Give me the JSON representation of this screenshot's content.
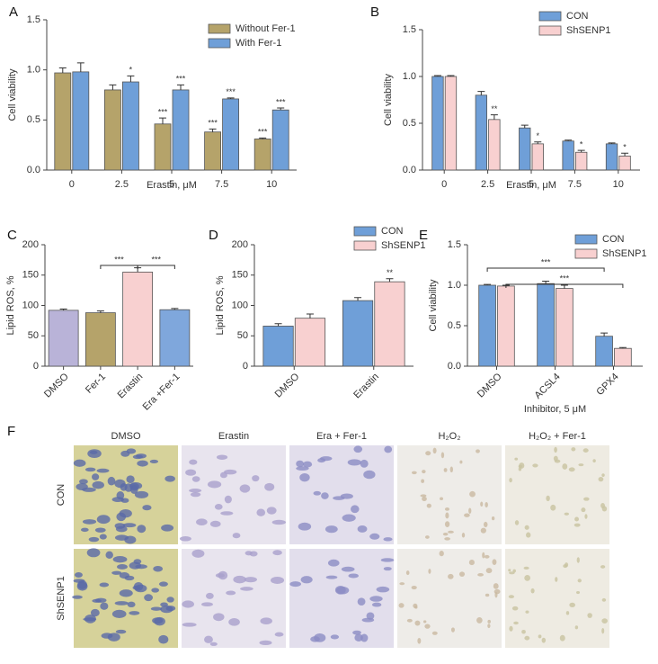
{
  "chart_data": [
    {
      "type": "bar",
      "panel": "A",
      "xlabel": "Erastin, μM",
      "ylabel": "Cell viability",
      "categories": [
        "0",
        "2.5",
        "5",
        "7.5",
        "10"
      ],
      "series": [
        {
          "name": "Without Fer-1",
          "color": "#b5a36a",
          "values": [
            0.97,
            0.8,
            0.46,
            0.38,
            0.31
          ],
          "errors": [
            0.05,
            0.05,
            0.06,
            0.03,
            0.01
          ],
          "significance": [
            null,
            null,
            "***",
            "***",
            "***"
          ]
        },
        {
          "name": "With Fer-1",
          "color": "#6f9fd8",
          "values": [
            0.98,
            0.88,
            0.8,
            0.71,
            0.6
          ],
          "errors": [
            0.09,
            0.06,
            0.05,
            0.01,
            0.02
          ],
          "significance": [
            null,
            "*",
            "***",
            "***",
            "***"
          ]
        }
      ],
      "ylim": [
        0,
        1.5
      ],
      "yticks": [
        {
          "value": 0,
          "label": "0.0"
        },
        {
          "value": 0.5,
          "label": "0.5"
        },
        {
          "value": 1,
          "label": "1.0"
        },
        {
          "value": 1.5,
          "label": "1.5"
        }
      ],
      "legend": "upper right"
    },
    {
      "type": "bar",
      "panel": "B",
      "xlabel": "Erastin, μM",
      "ylabel": "Cell viability",
      "categories": [
        "0",
        "2.5",
        "5",
        "7.5",
        "10"
      ],
      "series": [
        {
          "name": "CON",
          "color": "#6f9fd8",
          "values": [
            1.0,
            0.8,
            0.45,
            0.31,
            0.28
          ],
          "errors": [
            0.01,
            0.04,
            0.03,
            0.01,
            0.01
          ],
          "significance": [
            null,
            null,
            null,
            null,
            null
          ]
        },
        {
          "name": "ShSENP1",
          "color": "#f8d0d0",
          "values": [
            1.0,
            0.54,
            0.28,
            0.19,
            0.15
          ],
          "errors": [
            0.01,
            0.05,
            0.02,
            0.02,
            0.03
          ],
          "significance": [
            null,
            "**",
            "*",
            "*",
            "*"
          ]
        }
      ],
      "ylim": [
        0,
        1.5
      ],
      "yticks": [
        {
          "value": 0,
          "label": "0.0"
        },
        {
          "value": 0.5,
          "label": "0.5"
        },
        {
          "value": 1,
          "label": "1.0"
        },
        {
          "value": 1.5,
          "label": "1.5"
        }
      ],
      "legend": "upper right"
    },
    {
      "type": "bar",
      "panel": "C",
      "ylabel": "Lipid ROS, %",
      "categories": [
        "DMSO",
        "Fer-1",
        "Erastin",
        "Era +Fer-1"
      ],
      "values": [
        92,
        88,
        155,
        93
      ],
      "errors": [
        2,
        3,
        7,
        2
      ],
      "colors": [
        "#b9b3d8",
        "#b5a36a",
        "#f8d0d0",
        "#7fa7dc"
      ],
      "comparisons": [
        {
          "between": [
            "Fer-1",
            "Erastin"
          ],
          "label": "***"
        },
        {
          "between": [
            "Erastin",
            "Era +Fer-1"
          ],
          "label": "***"
        }
      ],
      "ylim": [
        0,
        200
      ],
      "yticks": [
        0,
        50,
        100,
        150,
        200
      ],
      "xtick_rotation": -45
    },
    {
      "type": "bar",
      "panel": "D",
      "ylabel": "Lipid ROS, %",
      "categories": [
        "DMSO",
        "Erastin"
      ],
      "series": [
        {
          "name": "CON",
          "color": "#6f9fd8",
          "values": [
            66,
            108
          ],
          "errors": [
            4,
            5
          ],
          "significance": [
            null,
            null
          ]
        },
        {
          "name": "ShSENP1",
          "color": "#f8d0d0",
          "values": [
            79,
            139
          ],
          "errors": [
            7,
            5
          ],
          "significance": [
            null,
            "**"
          ]
        }
      ],
      "ylim": [
        0,
        200
      ],
      "yticks": [
        0,
        50,
        100,
        150,
        200
      ],
      "xtick_rotation": -45,
      "legend": "upper right"
    },
    {
      "type": "bar",
      "panel": "E",
      "xlabel": "Inhibitor, 5 μM",
      "ylabel": "Cell viability",
      "categories": [
        "DMSO",
        "ACSL4",
        "GPX4"
      ],
      "series": [
        {
          "name": "CON",
          "color": "#6f9fd8",
          "values": [
            1.0,
            1.02,
            0.37
          ],
          "errors": [
            0.01,
            0.03,
            0.04
          ],
          "significance": [
            null,
            null,
            null
          ]
        },
        {
          "name": "ShSENP1",
          "color": "#f8d0d0",
          "values": [
            0.99,
            0.96,
            0.22
          ],
          "errors": [
            0.01,
            0.04,
            0.01
          ],
          "significance": [
            null,
            null,
            null
          ]
        }
      ],
      "comparisons": [
        {
          "between": [
            "DMSO",
            "GPX4"
          ],
          "label": "***"
        },
        {
          "between": [
            "DMSO",
            "GPX4"
          ],
          "label": "***"
        }
      ],
      "ylim": [
        0,
        1.5
      ],
      "yticks": [
        {
          "value": 0,
          "label": "0.0"
        },
        {
          "value": 0.5,
          "label": "0.5"
        },
        {
          "value": 1,
          "label": "1.0"
        },
        {
          "value": 1.5,
          "label": "1.5"
        }
      ],
      "xtick_rotation": -45,
      "legend": "upper right"
    }
  ],
  "micrographs": {
    "panel": "F",
    "columns": [
      "DMSO",
      "Erastin",
      "Era + Fer-1",
      "H₂O₂",
      "H₂O₂ + Fer-1"
    ],
    "rows": [
      "CON",
      "ShSENP1"
    ]
  }
}
